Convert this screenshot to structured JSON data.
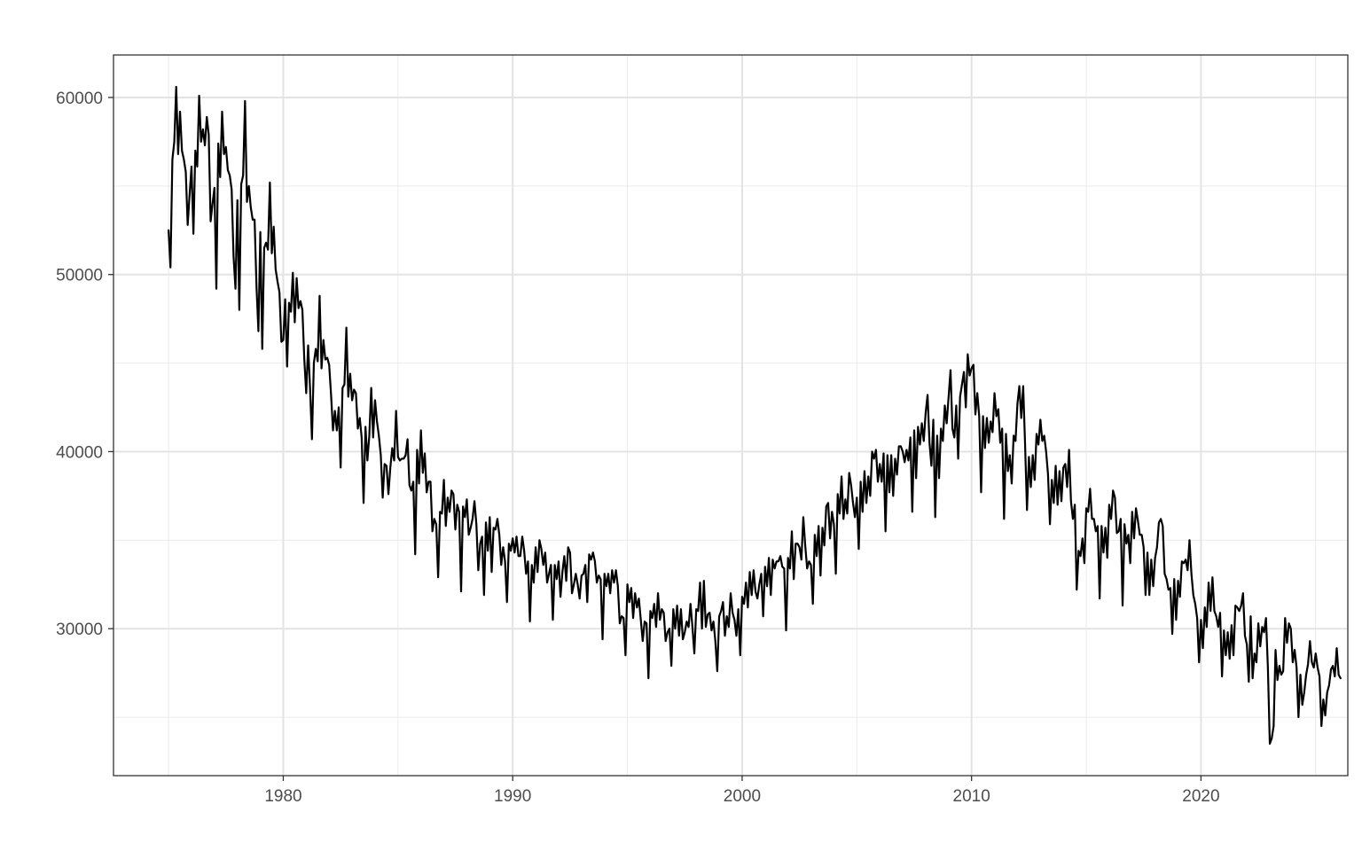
{
  "chart_data": {
    "type": "line",
    "title": "",
    "xlabel": "",
    "ylabel": "",
    "xlim": [
      1972.6,
      2026.4
    ],
    "ylim": [
      21700,
      62400
    ],
    "x_ticks": [
      1980,
      1990,
      2000,
      2010,
      2020
    ],
    "x_minor_ticks": [
      1975,
      1985,
      1995,
      2005,
      2015,
      2025
    ],
    "y_ticks": [
      30000,
      40000,
      50000,
      60000
    ],
    "y_minor_ticks": [
      25000,
      35000,
      45000,
      55000
    ],
    "grid": true,
    "legend": "none",
    "line_color": "#000000",
    "start": "1975-01",
    "frequency": "monthly",
    "series": [
      {
        "values": [
          52500,
          50400,
          56500,
          57500,
          60600,
          56800,
          59200,
          57000,
          56500,
          55800,
          52800,
          54500,
          56100,
          52300,
          57000,
          56100,
          60100,
          57500,
          58200,
          57300,
          58900,
          57900,
          53000,
          54000,
          54900,
          49200,
          57400,
          55500,
          59200,
          56800,
          57200,
          55900,
          55600,
          54800,
          51000,
          49200,
          54200,
          48000,
          55100,
          55600,
          59800,
          54100,
          55000,
          53800,
          53100,
          53100,
          49300,
          46800,
          52400,
          45800,
          51500,
          51800,
          51400,
          55200,
          51200,
          52700,
          50300,
          49600,
          49000,
          46200,
          46300,
          48600,
          44800,
          48400,
          47900,
          50100,
          47300,
          49800,
          48100,
          48500,
          48000,
          45200,
          43300,
          46000,
          43600,
          40700,
          45000,
          45800,
          45100,
          48800,
          44700,
          46300,
          45200,
          45300,
          44900,
          43200,
          41200,
          42300,
          41200,
          42500,
          39100,
          43600,
          43800,
          47000,
          43100,
          44400,
          42900,
          43500,
          43300,
          41300,
          41900,
          40800,
          37100,
          41400,
          39500,
          40900,
          43600,
          40800,
          42900,
          41700,
          40900,
          39800,
          37400,
          39300,
          39200,
          37600,
          39100,
          40200,
          39500,
          42300,
          39700,
          39500,
          39600,
          39600,
          39800,
          40700,
          38100,
          37800,
          38300,
          34200,
          40100,
          38200,
          41200,
          38800,
          39900,
          37700,
          38300,
          38300,
          35500,
          36200,
          35900,
          32900,
          36600,
          36500,
          38400,
          35800,
          37400,
          36600,
          37800,
          37600,
          35600,
          37000,
          36600,
          32100,
          36900,
          36300,
          37300,
          35300,
          35700,
          36200,
          37200,
          35900,
          33300,
          34800,
          35200,
          31900,
          36000,
          34400,
          36300,
          33200,
          35700,
          35600,
          36200,
          35300,
          33600,
          34600,
          33800,
          31500,
          34800,
          34400,
          35100,
          34300,
          35200,
          34100,
          34100,
          35200,
          34400,
          33100,
          33800,
          30400,
          33600,
          32600,
          34600,
          33200,
          35000,
          34500,
          33600,
          34300,
          32600,
          33100,
          33600,
          30500,
          33600,
          32800,
          33800,
          31800,
          33200,
          34100,
          32700,
          34600,
          34300,
          32000,
          32500,
          33100,
          32500,
          31700,
          33000,
          33100,
          33600,
          31500,
          34200,
          33900,
          34300,
          33800,
          32600,
          33000,
          32800,
          29400,
          33100,
          32400,
          33100,
          32000,
          33300,
          32600,
          33300,
          32400,
          30300,
          30700,
          30600,
          28500,
          32500,
          31500,
          32300,
          30600,
          32000,
          31200,
          31700,
          30500,
          29300,
          30400,
          30300,
          27200,
          31000,
          30600,
          31400,
          30100,
          32000,
          30500,
          31100,
          30900,
          29300,
          29800,
          30000,
          27900,
          31100,
          30000,
          31300,
          29600,
          31100,
          29400,
          29800,
          30400,
          30100,
          31400,
          30100,
          28600,
          31100,
          31000,
          32600,
          30000,
          32700,
          30100,
          30800,
          30900,
          29900,
          30400,
          29300,
          27600,
          30700,
          31000,
          31500,
          29600,
          30700,
          30100,
          32000,
          30900,
          30500,
          29600,
          31100,
          28500,
          31800,
          31400,
          32600,
          31200,
          33200,
          31900,
          33300,
          32100,
          31700,
          32500,
          33100,
          30700,
          33500,
          32400,
          34000,
          31900,
          33900,
          33400,
          33800,
          33800,
          34100,
          33500,
          33400,
          29900,
          34000,
          33400,
          35500,
          32800,
          34800,
          34800,
          34600,
          33900,
          36300,
          34700,
          33400,
          33800,
          33600,
          31400,
          35300,
          34100,
          35800,
          33000,
          35700,
          34700,
          36900,
          37100,
          35100,
          36600,
          35900,
          33100,
          37600,
          36500,
          38600,
          36200,
          37300,
          36500,
          38800,
          38100,
          37100,
          36300,
          37400,
          34500,
          38300,
          36600,
          38900,
          37100,
          38600,
          37500,
          40000,
          39600,
          40100,
          38300,
          39300,
          38300,
          39900,
          35500,
          39800,
          37700,
          39800,
          37500,
          39600,
          38700,
          40300,
          40300,
          40000,
          39400,
          40100,
          39500,
          40800,
          36600,
          41200,
          38500,
          41400,
          40400,
          41600,
          40600,
          42200,
          43200,
          40500,
          39200,
          41800,
          36300,
          40900,
          38500,
          41300,
          40600,
          42600,
          41600,
          43100,
          44600,
          41300,
          40800,
          42600,
          39600,
          43100,
          43800,
          44500,
          42500,
          45500,
          44300,
          44700,
          44900,
          42100,
          43300,
          42000,
          37700,
          42000,
          40200,
          41900,
          40500,
          41700,
          41100,
          43300,
          42000,
          42400,
          40500,
          41300,
          36200,
          41000,
          38900,
          39800,
          38200,
          40900,
          40600,
          42700,
          43700,
          41900,
          43700,
          40400,
          36700,
          39700,
          38000,
          39800,
          38400,
          41000,
          40400,
          41800,
          40600,
          40900,
          40000,
          38700,
          35900,
          38400,
          37100,
          39200,
          37000,
          38900,
          37200,
          39100,
          39300,
          38000,
          40100,
          37200,
          36200,
          37000,
          32200,
          34400,
          34100,
          35100,
          33700,
          36800,
          36600,
          37900,
          36200,
          36200,
          35500,
          35800,
          31700,
          35800,
          34300,
          35700,
          34000,
          37000,
          36200,
          37800,
          37400,
          35400,
          35500,
          36200,
          31300,
          35900,
          34800,
          35300,
          33700,
          36600,
          35100,
          36800,
          36100,
          35300,
          35300,
          34600,
          31900,
          34300,
          31900,
          33900,
          32400,
          34000,
          34600,
          36000,
          36200,
          35800,
          33100,
          32800,
          32200,
          32300,
          29700,
          32800,
          30500,
          32700,
          31800,
          33800,
          33700,
          33900,
          33300,
          35000,
          33100,
          31900,
          31400,
          30600,
          28100,
          30500,
          28900,
          31200,
          30100,
          32600,
          31000,
          32900,
          31000,
          30700,
          30100,
          30900,
          27300,
          29900,
          28500,
          29800,
          28300,
          30200,
          28500,
          31300,
          31200,
          31000,
          31300,
          32000,
          29600,
          29100,
          27000,
          30700,
          27200,
          28600,
          28100,
          30300,
          29000,
          30100,
          29800,
          30600,
          27800,
          23500,
          23800,
          24500,
          28800,
          27100,
          27900,
          27400,
          27600,
          30600,
          29200,
          30300,
          30000,
          28100,
          28800,
          27800,
          25000,
          27400,
          25700,
          26400,
          27400,
          28000,
          29300,
          28100,
          27800,
          28600,
          27800,
          27300,
          24500,
          26000,
          25100,
          26400,
          26800,
          27700,
          27900,
          27300,
          28900,
          27400,
          27200
        ]
      }
    ]
  }
}
